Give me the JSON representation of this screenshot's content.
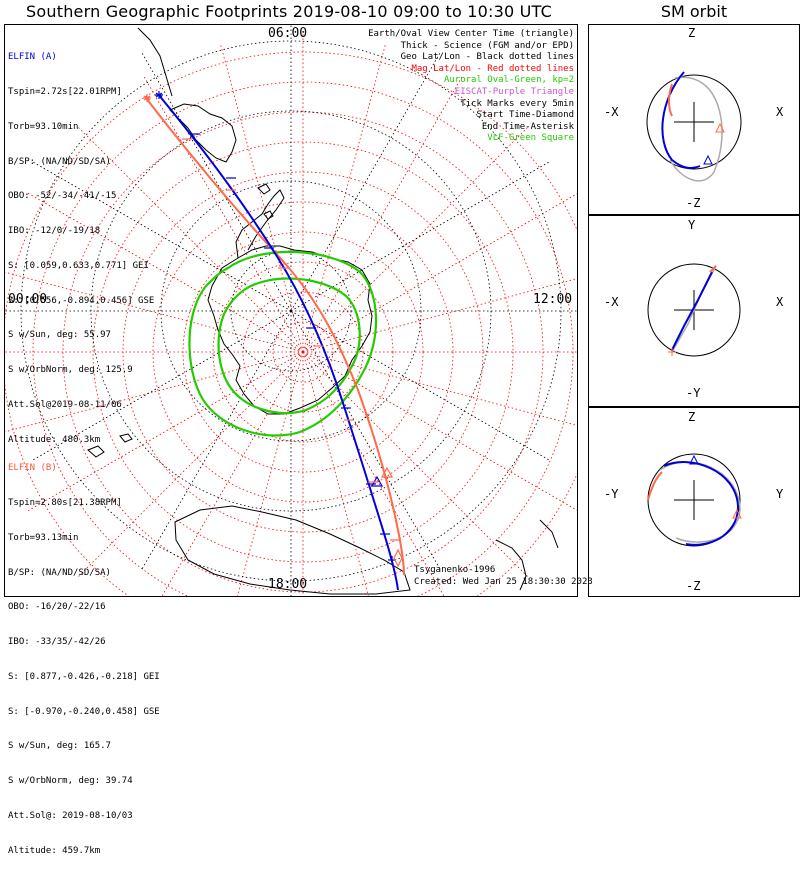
{
  "header": {
    "title": "Southern Geographic Footprints 2019-08-10 09:00 to 10:30 UTC",
    "orbit_title": "SM orbit"
  },
  "map": {
    "time_labels": {
      "top": "06:00",
      "left": "00:00",
      "right": "12:00",
      "bottom": "18:00"
    },
    "colors": {
      "elfin_a": "#0000dd",
      "elfin_b": "#ff6a4a",
      "mag_grid": "#ff0000",
      "geo_grid": "#000000",
      "oval": "#22cc00",
      "eiscat": "#cc33cc"
    }
  },
  "legend": [
    {
      "text": "Earth/Oval View Center Time (triangle)",
      "color": "#000000"
    },
    {
      "text": "Thick - Science (FGM and/or EPD)",
      "color": "#000000"
    },
    {
      "text": "Geo Lat/Lon - Black dotted lines",
      "color": "#000000"
    },
    {
      "text": "Mag Lat/Lon - Red dotted lines",
      "color": "#ff0000"
    },
    {
      "text": "Auroral Oval-Green, kp=2",
      "color": "#22cc00"
    },
    {
      "text": "EISCAT-Purple Triangle",
      "color": "#cc55cc"
    },
    {
      "text": "Tick Marks every 5min",
      "color": "#000000"
    },
    {
      "text": "Start Time-Diamond",
      "color": "#000000"
    },
    {
      "text": "End Time-Asterisk",
      "color": "#000000"
    },
    {
      "text": "VLF-Green Square",
      "color": "#22cc00"
    }
  ],
  "elfin_a": {
    "name": "ELFIN (A)",
    "color": "#0000dd",
    "lines": [
      "Tspin=2.72s[22.01RPM]",
      "Torb=93.10min",
      "B/SP: (NA/ND/SD/SA)",
      "OBO: -52/-34/-41/-15",
      "IBO: -12/0/-19/18",
      "S: [0.059,0.633,0.771] GEI",
      "S: [0.556,-0.894,0.456] GSE",
      "S w/Sun, deg: 55.97",
      "S w/OrbNorm, deg: 125.9",
      "Att.Sol@2019-08-11/06",
      "Altitude: 480.3km"
    ]
  },
  "elfin_b": {
    "name": "ELFIN (B)",
    "color": "#ff5533",
    "lines": [
      "Tspin=2.80s[21.38RPM]",
      "Torb=93.13min",
      "B/SP: (NA/ND/SD/SA)",
      "OBO: -16/20/-22/16",
      "IBO: -33/35/-42/26",
      "S: [0.877,-0.426,-0.218] GEI",
      "S: [-0.970,-0.240,0.458] GSE",
      "S w/Sun, deg: 165.7",
      "S w/OrbNorm, deg: 39.74",
      "Att.Sol@: 2019-08-10/03",
      "Altitude: 459.7km"
    ]
  },
  "footer": {
    "model": "Tsyganenko-1996",
    "created": "Created: Wed Jan 25 18:30:30 2023"
  },
  "orbit_panels": [
    {
      "top": "Z",
      "bottom": "-Z",
      "left": "-X",
      "right": "X"
    },
    {
      "top": "Y",
      "bottom": "-Y",
      "left": "-X",
      "right": "X"
    },
    {
      "top": "Z",
      "bottom": "-Z",
      "left": "-Y",
      "right": "Y"
    }
  ]
}
